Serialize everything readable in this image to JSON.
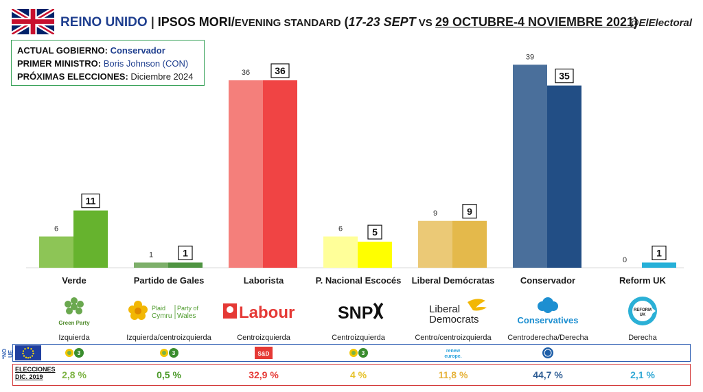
{
  "header": {
    "country": "REINO UNIDO",
    "separator": "|",
    "pollster": "IPSOS MORI/",
    "outlet": "EVENING STANDARD",
    "open_paren": "(",
    "period_prev": "17-23 SEPT",
    "vs": " VS ",
    "period_curr": "29 OCTUBRE-4 NOVIEMBRE 2021",
    "close_paren": ")",
    "handle": "@ElElectoral"
  },
  "info": {
    "gov_label": "ACTUAL GOBIERNO:",
    "gov_value": "Conservador",
    "pm_label": "PRIMER MINISTRO:",
    "pm_value": "Boris Johnson (CON)",
    "next_label": "PRÓXIMAS ELECCIONES:",
    "next_value": "Diciembre 2024"
  },
  "chart_data": {
    "type": "bar",
    "categories": [
      "Verde",
      "Partido de Gales",
      "Laborista",
      "P. Nacional Escocés",
      "Liberal Demócratas",
      "Conservador",
      "Reform UK"
    ],
    "series": [
      {
        "values": [
          6,
          1,
          36,
          6,
          9,
          39,
          0
        ],
        "colors": [
          "#8dc556",
          "#7daf6a",
          "#f47f7b",
          "#ffff99",
          "#ebc976",
          "#4a6f9b",
          "#2bb0d6"
        ]
      },
      {
        "values": [
          11,
          1,
          36,
          5,
          9,
          35,
          1
        ],
        "colors": [
          "#66b32e",
          "#4f9442",
          "#f04444",
          "#ffff00",
          "#e4b94b",
          "#224e85",
          "#26b0d8"
        ]
      }
    ],
    "ylim": [
      0,
      40
    ],
    "grid": false,
    "legend": "none"
  },
  "parties": [
    {
      "ideology": "Izquierda",
      "logo": "Green Party",
      "group": "verdes",
      "election": "2,8 %",
      "color": "#7cb342"
    },
    {
      "ideology": "Izquierda/centroizquierda",
      "logo_top": "Plaid",
      "logo_bottom": "Cymru",
      "logo_right_top": "Party of",
      "logo_right_bottom": "Wales",
      "group": "verdes",
      "election": "0,5 %",
      "color": "#4c9a2a"
    },
    {
      "ideology": "Centroizquierda",
      "logo": "Labour",
      "group": "S&D",
      "election": "32,9 %",
      "color": "#e53935"
    },
    {
      "ideology": "Centroizquierda",
      "logo": "SNP",
      "group": "verdes",
      "election": "4 %",
      "color": "#e6c229"
    },
    {
      "ideology": "Centro/centroizquierda",
      "logo_top": "Liberal",
      "logo_bottom": "Democrats",
      "group_top": "renew",
      "group_bottom": "europe.",
      "election": "11,8 %",
      "color": "#e6b23a"
    },
    {
      "ideology": "Centroderecha/Derecha",
      "logo": "Conservatives",
      "group": "ECR",
      "election": "44,7 %",
      "color": "#2f5e95"
    },
    {
      "ideology": "Derecha",
      "logo_top": "REFORM",
      "logo_bottom": "UK",
      "election": "2,1 %",
      "color": "#2ea7d4"
    }
  ],
  "eu": {
    "no_ue": "*NO UE"
  },
  "elections": {
    "label_top": "ELECCIONES",
    "label_bottom": "DIC. 2019"
  }
}
